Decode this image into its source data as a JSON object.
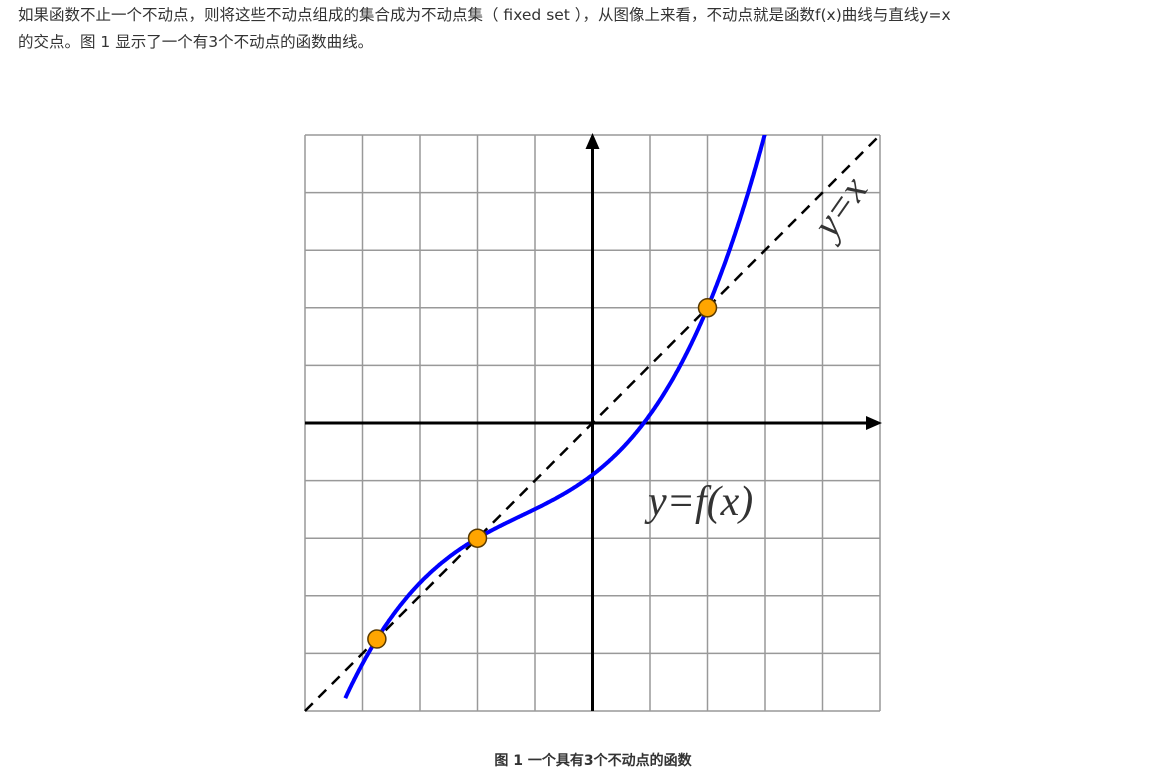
{
  "paragraph": {
    "line1": "如果函数不止一个不动点，则将这些不动点组成的集合成为不动点集（ fixed set ），从图像上来看，不动点就是函数f(x)曲线与直线y=x",
    "line2": "的交点。图 1 显示了一个有3个不动点的函数曲线。"
  },
  "figure": {
    "caption": "图 1 一个具有3个不动点的函数"
  },
  "chart_data": {
    "type": "line",
    "xlim": [
      -5,
      5
    ],
    "ylim": [
      -5,
      5
    ],
    "grid": true,
    "grid_step": 1,
    "series": [
      {
        "name": "y=x",
        "style": "dashed",
        "color": "#000000"
      },
      {
        "name": "y=f(x)",
        "style": "solid",
        "color": "#0000ff",
        "points": [
          [
            -4.2,
            -5.0
          ],
          [
            -3.75,
            -3.75
          ],
          [
            -3,
            -2.8
          ],
          [
            -2,
            -2
          ],
          [
            -1,
            -1.5
          ],
          [
            0,
            -0.9
          ],
          [
            1,
            0.1
          ],
          [
            2,
            2
          ],
          [
            3,
            5.0
          ]
        ]
      }
    ],
    "fixed_points": [
      [
        -3.75,
        -3.75
      ],
      [
        -2,
        -2
      ],
      [
        2,
        2
      ]
    ],
    "fixed_point_color": "#ffa500",
    "annotations": [
      "y=x",
      "y=f(x)"
    ]
  }
}
